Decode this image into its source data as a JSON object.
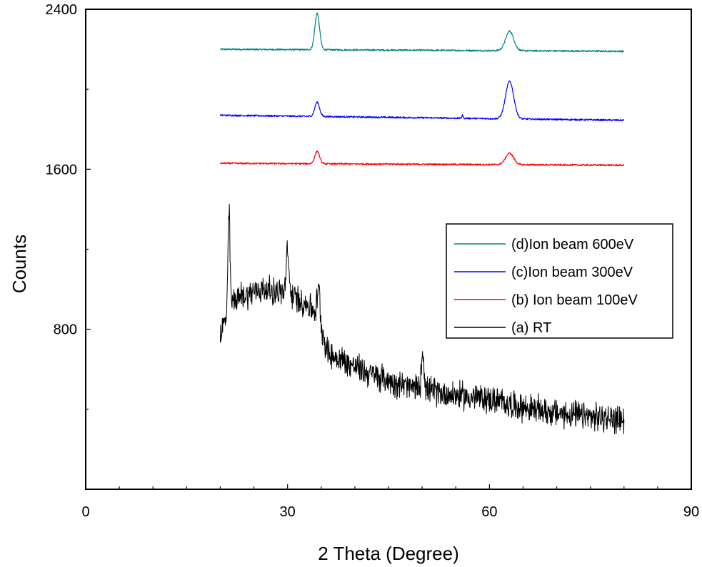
{
  "chart_data": {
    "type": "line",
    "title": "",
    "xlabel": "2 Theta (Degree)",
    "ylabel": "Counts",
    "xlim": [
      0,
      90
    ],
    "ylim": [
      0,
      2400
    ],
    "x_ticks": [
      0,
      30,
      60,
      90
    ],
    "x_tick_labels": [
      "0",
      "30",
      "60",
      "90"
    ],
    "y_ticks": [
      800,
      1600,
      2400
    ],
    "y_tick_labels": [
      "800",
      "1600",
      "2400"
    ],
    "grid": false,
    "legend_position": "right",
    "series": [
      {
        "name": "(d)Ion beam 600eV",
        "color": "#008080",
        "baseline": [
          [
            20,
            2200
          ],
          [
            80,
            2190
          ]
        ],
        "peaks": [
          [
            34.4,
            2380,
            0.35
          ],
          [
            63.0,
            2290,
            0.6
          ]
        ],
        "noise": 4
      },
      {
        "name": "(c)Ion beam 300eV",
        "color": "#0000ff",
        "baseline": [
          [
            20,
            1870
          ],
          [
            80,
            1845
          ]
        ],
        "peaks": [
          [
            34.4,
            1935,
            0.35
          ],
          [
            56.0,
            1870,
            0.1
          ],
          [
            63.0,
            2040,
            0.6
          ]
        ],
        "noise": 4
      },
      {
        "name": "(b) Ion beam 100eV",
        "color": "#ff0000",
        "baseline": [
          [
            20,
            1630
          ],
          [
            80,
            1620
          ]
        ],
        "peaks": [
          [
            34.4,
            1690,
            0.35
          ],
          [
            63.0,
            1680,
            0.6
          ]
        ],
        "noise": 4
      },
      {
        "name": "(a) RT",
        "color": "#000000",
        "baseline": [
          [
            20,
            780
          ],
          [
            22,
            950
          ],
          [
            26,
            1000
          ],
          [
            30,
            980
          ],
          [
            33,
            920
          ],
          [
            34.5,
            880
          ],
          [
            36,
            680
          ],
          [
            42,
            580
          ],
          [
            48,
            510
          ],
          [
            55,
            470
          ],
          [
            60,
            450
          ],
          [
            65,
            410
          ],
          [
            70,
            380
          ],
          [
            75,
            360
          ],
          [
            80,
            350
          ]
        ],
        "peaks": [
          [
            21.3,
            1380,
            0.15
          ],
          [
            30.0,
            1180,
            0.2
          ],
          [
            34.6,
            1000,
            0.2
          ],
          [
            50.1,
            690,
            0.2
          ]
        ],
        "noise": 60
      }
    ]
  }
}
